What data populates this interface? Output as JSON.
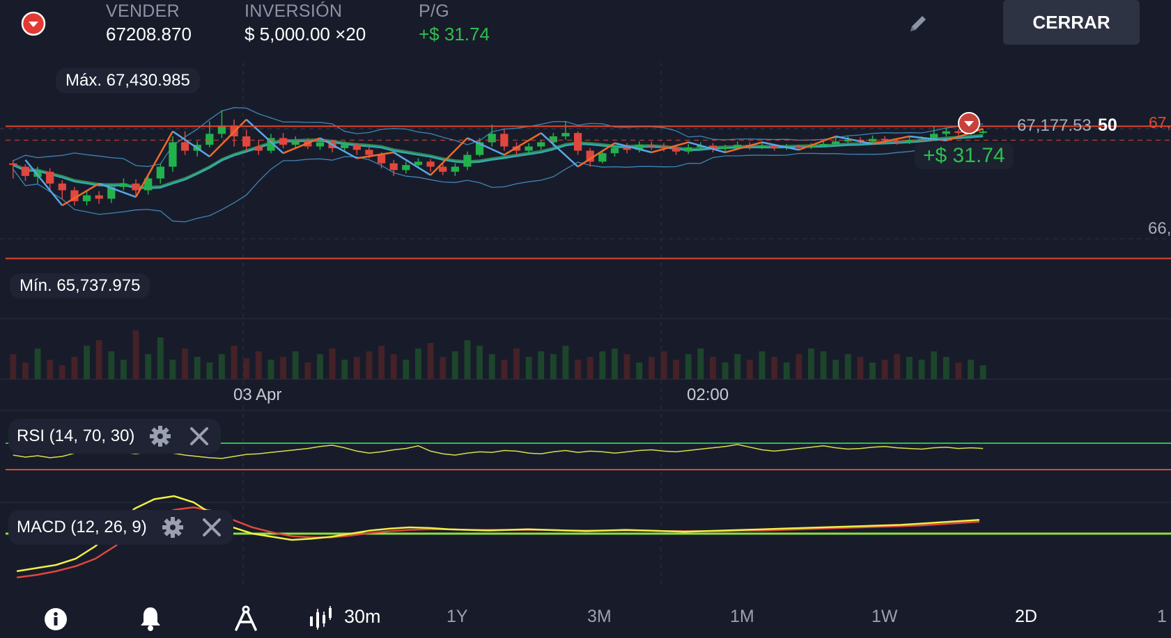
{
  "header": {
    "direction_icon": "down-arrow-circle-icon",
    "sell": {
      "label": "VENDER",
      "value": "67208.870"
    },
    "investment": {
      "label": "INVERSIÓN",
      "value": "$ 5,000.00 ×20"
    },
    "pnl": {
      "label": "P/G",
      "value": "+$ 31.74"
    },
    "edit_icon": "pencil-icon",
    "close_button": "CERRAR"
  },
  "chart": {
    "max_label": "Máx. 67,430.985",
    "min_label": "Mín. 65,737.975",
    "current_price": "67,177.53",
    "countdown": "50",
    "right_edge_label_top": "67,",
    "right_edge_label_mid": "66,",
    "position_pnl": "+$ 31.74",
    "time_labels": [
      "03 Apr",
      "02:00"
    ],
    "colors": {
      "bull": "#22b24c",
      "bear": "#e0473f",
      "line_red": "#e5462f",
      "zigzag_blue": "#5aa6e6",
      "zigzag_orange": "#f06a2a",
      "bands": "#4aa0d8",
      "ma": "#38c0c0",
      "ma_green": "#3cbf4e",
      "bg": "#181c2a"
    }
  },
  "chart_data": {
    "type": "candlestick",
    "ylim": [
      65600,
      67500
    ],
    "max": 67430.985,
    "min": 65737.975,
    "current": 67177.53,
    "resistance": 67240,
    "support": 65670,
    "candles": [
      [
        66800,
        66780,
        66840,
        66620
      ],
      [
        66760,
        66650,
        66790,
        66590
      ],
      [
        66640,
        66700,
        66760,
        66560
      ],
      [
        66700,
        66560,
        66740,
        66480
      ],
      [
        66560,
        66480,
        66600,
        66380
      ],
      [
        66480,
        66350,
        66520,
        66300
      ],
      [
        66350,
        66420,
        66480,
        66300
      ],
      [
        66420,
        66380,
        66470,
        66320
      ],
      [
        66380,
        66520,
        66560,
        66330
      ],
      [
        66520,
        66560,
        66620,
        66480
      ],
      [
        66560,
        66480,
        66610,
        66400
      ],
      [
        66480,
        66620,
        66660,
        66430
      ],
      [
        66620,
        66760,
        66800,
        66560
      ],
      [
        66760,
        67050,
        67120,
        66700
      ],
      [
        67050,
        66950,
        67180,
        66900
      ],
      [
        66950,
        67020,
        67060,
        66880
      ],
      [
        67020,
        67150,
        67300,
        66990
      ],
      [
        67150,
        67250,
        67430,
        67100
      ],
      [
        67250,
        67120,
        67320,
        67000
      ],
      [
        67120,
        67000,
        67200,
        66950
      ],
      [
        67000,
        66950,
        67080,
        66900
      ],
      [
        66950,
        67100,
        67150,
        66920
      ],
      [
        67100,
        67020,
        67160,
        66980
      ],
      [
        67020,
        67060,
        67120,
        66990
      ],
      [
        67060,
        67000,
        67100,
        66970
      ],
      [
        67000,
        67050,
        67090,
        66960
      ],
      [
        67050,
        66980,
        67080,
        66930
      ],
      [
        66980,
        67020,
        67060,
        66950
      ],
      [
        67020,
        66960,
        67040,
        66900
      ],
      [
        66960,
        66900,
        67000,
        66860
      ],
      [
        66900,
        66800,
        66930,
        66740
      ],
      [
        66800,
        66720,
        66840,
        66650
      ],
      [
        66720,
        66780,
        66820,
        66680
      ],
      [
        66780,
        66820,
        66860,
        66740
      ],
      [
        66820,
        66760,
        66850,
        66700
      ],
      [
        66760,
        66700,
        66800,
        66660
      ],
      [
        66700,
        66760,
        66800,
        66650
      ],
      [
        66760,
        66900,
        66940,
        66720
      ],
      [
        66900,
        67050,
        67100,
        66880
      ],
      [
        67050,
        67150,
        67260,
        67000
      ],
      [
        67150,
        67000,
        67200,
        66950
      ],
      [
        67000,
        66950,
        67050,
        66900
      ],
      [
        66950,
        67000,
        67040,
        66910
      ],
      [
        67000,
        67050,
        67080,
        66960
      ],
      [
        67050,
        67120,
        67160,
        67000
      ],
      [
        67120,
        67160,
        67300,
        67080
      ],
      [
        67160,
        66950,
        67180,
        66900
      ],
      [
        66950,
        66820,
        66980,
        66760
      ],
      [
        66820,
        66920,
        66960,
        66800
      ],
      [
        66920,
        66980,
        67020,
        66880
      ],
      [
        66980,
        66960,
        67040,
        66920
      ],
      [
        66960,
        67020,
        67060,
        66930
      ],
      [
        67020,
        67000,
        67060,
        66960
      ],
      [
        67000,
        66980,
        67040,
        66940
      ],
      [
        66980,
        66940,
        67010,
        66900
      ],
      [
        66940,
        66990,
        67030,
        66910
      ],
      [
        66990,
        67010,
        67050,
        66960
      ],
      [
        67010,
        66970,
        67040,
        66930
      ],
      [
        66970,
        66990,
        67020,
        66940
      ],
      [
        66990,
        67020,
        67060,
        66960
      ],
      [
        67020,
        67000,
        67050,
        66960
      ],
      [
        67000,
        67010,
        67040,
        66970
      ],
      [
        67010,
        66980,
        67030,
        66950
      ],
      [
        66980,
        67000,
        67030,
        66960
      ],
      [
        67000,
        66990,
        67020,
        66960
      ],
      [
        66990,
        67010,
        67040,
        66970
      ],
      [
        67010,
        67030,
        67070,
        66990
      ],
      [
        67030,
        67060,
        67100,
        67010
      ],
      [
        67060,
        67080,
        67120,
        67040
      ],
      [
        67080,
        67060,
        67110,
        67030
      ],
      [
        67060,
        67090,
        67130,
        67040
      ],
      [
        67090,
        67070,
        67120,
        67040
      ],
      [
        67070,
        67050,
        67100,
        67020
      ],
      [
        67050,
        67080,
        67110,
        67030
      ],
      [
        67080,
        67090,
        67120,
        67060
      ],
      [
        67090,
        67150,
        67240,
        67070
      ],
      [
        67150,
        67180,
        67220,
        67120
      ],
      [
        67180,
        67160,
        67210,
        67130
      ],
      [
        67160,
        67170,
        67200,
        67140
      ],
      [
        67170,
        67178,
        67210,
        67150
      ]
    ],
    "volume": [
      18,
      12,
      22,
      14,
      10,
      16,
      24,
      28,
      20,
      14,
      35,
      18,
      30,
      14,
      22,
      16,
      12,
      18,
      24,
      15,
      20,
      14,
      16,
      20,
      12,
      18,
      22,
      14,
      16,
      20,
      24,
      18,
      14,
      22,
      26,
      16,
      20,
      28,
      24,
      18,
      14,
      22,
      16,
      20,
      18,
      24,
      14,
      16,
      20,
      22,
      18,
      12,
      16,
      20,
      14,
      18,
      22,
      16,
      12,
      18,
      14,
      20,
      16,
      12,
      18,
      22,
      20,
      14,
      18,
      16,
      12,
      14,
      18,
      16,
      14,
      20,
      16,
      12,
      14,
      10
    ],
    "rsi": [
      52,
      49,
      51,
      48,
      50,
      55,
      62,
      66,
      58,
      56,
      54,
      57,
      59,
      55,
      52,
      50,
      48,
      47,
      50,
      53,
      54,
      56,
      58,
      60,
      62,
      65,
      67,
      63,
      58,
      55,
      57,
      60,
      62,
      66,
      58,
      54,
      52,
      55,
      57,
      56,
      59,
      58,
      55,
      54,
      57,
      59,
      56,
      58,
      57,
      55,
      57,
      59,
      60,
      58,
      57,
      59,
      61,
      63,
      65,
      68,
      64,
      60,
      58,
      60,
      62,
      64,
      66,
      63,
      61,
      62,
      64,
      65,
      63,
      62,
      61,
      63,
      64,
      62,
      63,
      62
    ],
    "rsi_levels": [
      70,
      30
    ],
    "macd": [
      -60,
      -55,
      -50,
      -40,
      -20,
      10,
      40,
      55,
      60,
      50,
      30,
      10,
      0,
      -5,
      -10,
      -8,
      -5,
      0,
      5,
      8,
      10,
      9,
      7,
      6,
      5,
      6,
      7,
      6,
      5,
      4,
      5,
      6,
      5,
      4,
      3,
      4,
      5,
      6,
      7,
      8,
      9,
      10,
      11,
      12,
      13,
      14,
      16,
      18,
      20,
      22
    ],
    "macd_signal": [
      -70,
      -66,
      -60,
      -52,
      -40,
      -20,
      5,
      25,
      38,
      42,
      36,
      22,
      10,
      2,
      -4,
      -6,
      -6,
      -3,
      1,
      4,
      6,
      7,
      7,
      6,
      6,
      6,
      6,
      6,
      5,
      5,
      5,
      5,
      5,
      4,
      4,
      4,
      4,
      5,
      5,
      6,
      7,
      8,
      9,
      10,
      11,
      12,
      13,
      15,
      17,
      19
    ]
  },
  "indicators": {
    "rsi": {
      "label": "RSI (14, 70, 30)",
      "settings_icon": "gear-icon",
      "remove_icon": "close-icon"
    },
    "macd": {
      "label": "MACD (12, 26, 9)",
      "settings_icon": "gear-icon",
      "remove_icon": "close-icon"
    }
  },
  "toolbar": {
    "info_icon": "info-icon",
    "alert_icon": "bell-icon",
    "drawing_icon": "compass-icon",
    "chart_type_icon": "candles-icon",
    "interval": "30m",
    "timeframes": [
      "1Y",
      "3M",
      "1M",
      "1W",
      "2D",
      "1"
    ],
    "active_timeframe": "2D"
  }
}
